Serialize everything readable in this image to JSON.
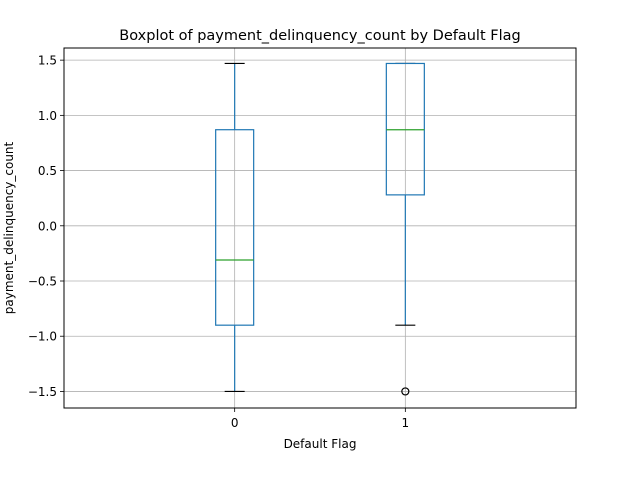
{
  "chart_data": {
    "type": "boxplot",
    "title": "Boxplot of payment_delinquency_count by Default Flag",
    "xlabel": "Default Flag",
    "ylabel": "payment_delinquency_count",
    "categories": [
      "0",
      "1"
    ],
    "ylim": [
      -1.65,
      1.61
    ],
    "yticks": [
      {
        "value": -1.5,
        "label": "−1.5"
      },
      {
        "value": -1.0,
        "label": "−1.0"
      },
      {
        "value": -0.5,
        "label": "−0.5"
      },
      {
        "value": 0.0,
        "label": "0.0"
      },
      {
        "value": 0.5,
        "label": "0.5"
      },
      {
        "value": 1.0,
        "label": "1.0"
      },
      {
        "value": 1.5,
        "label": "1.5"
      }
    ],
    "grid": true,
    "boxes": [
      {
        "category": "0",
        "whisker_low": -1.5,
        "q1": -0.9,
        "median": -0.31,
        "q3": 0.87,
        "whisker_high": 1.47,
        "outliers": []
      },
      {
        "category": "1",
        "whisker_low": -0.9,
        "q1": 0.28,
        "median": 0.87,
        "q3": 1.47,
        "whisker_high": 1.47,
        "outliers": [
          -1.5
        ]
      }
    ],
    "colors": {
      "box": "#1f77b4",
      "median": "#2ca02c",
      "grid": "#b0b0b0",
      "outlier": "#000000"
    }
  }
}
